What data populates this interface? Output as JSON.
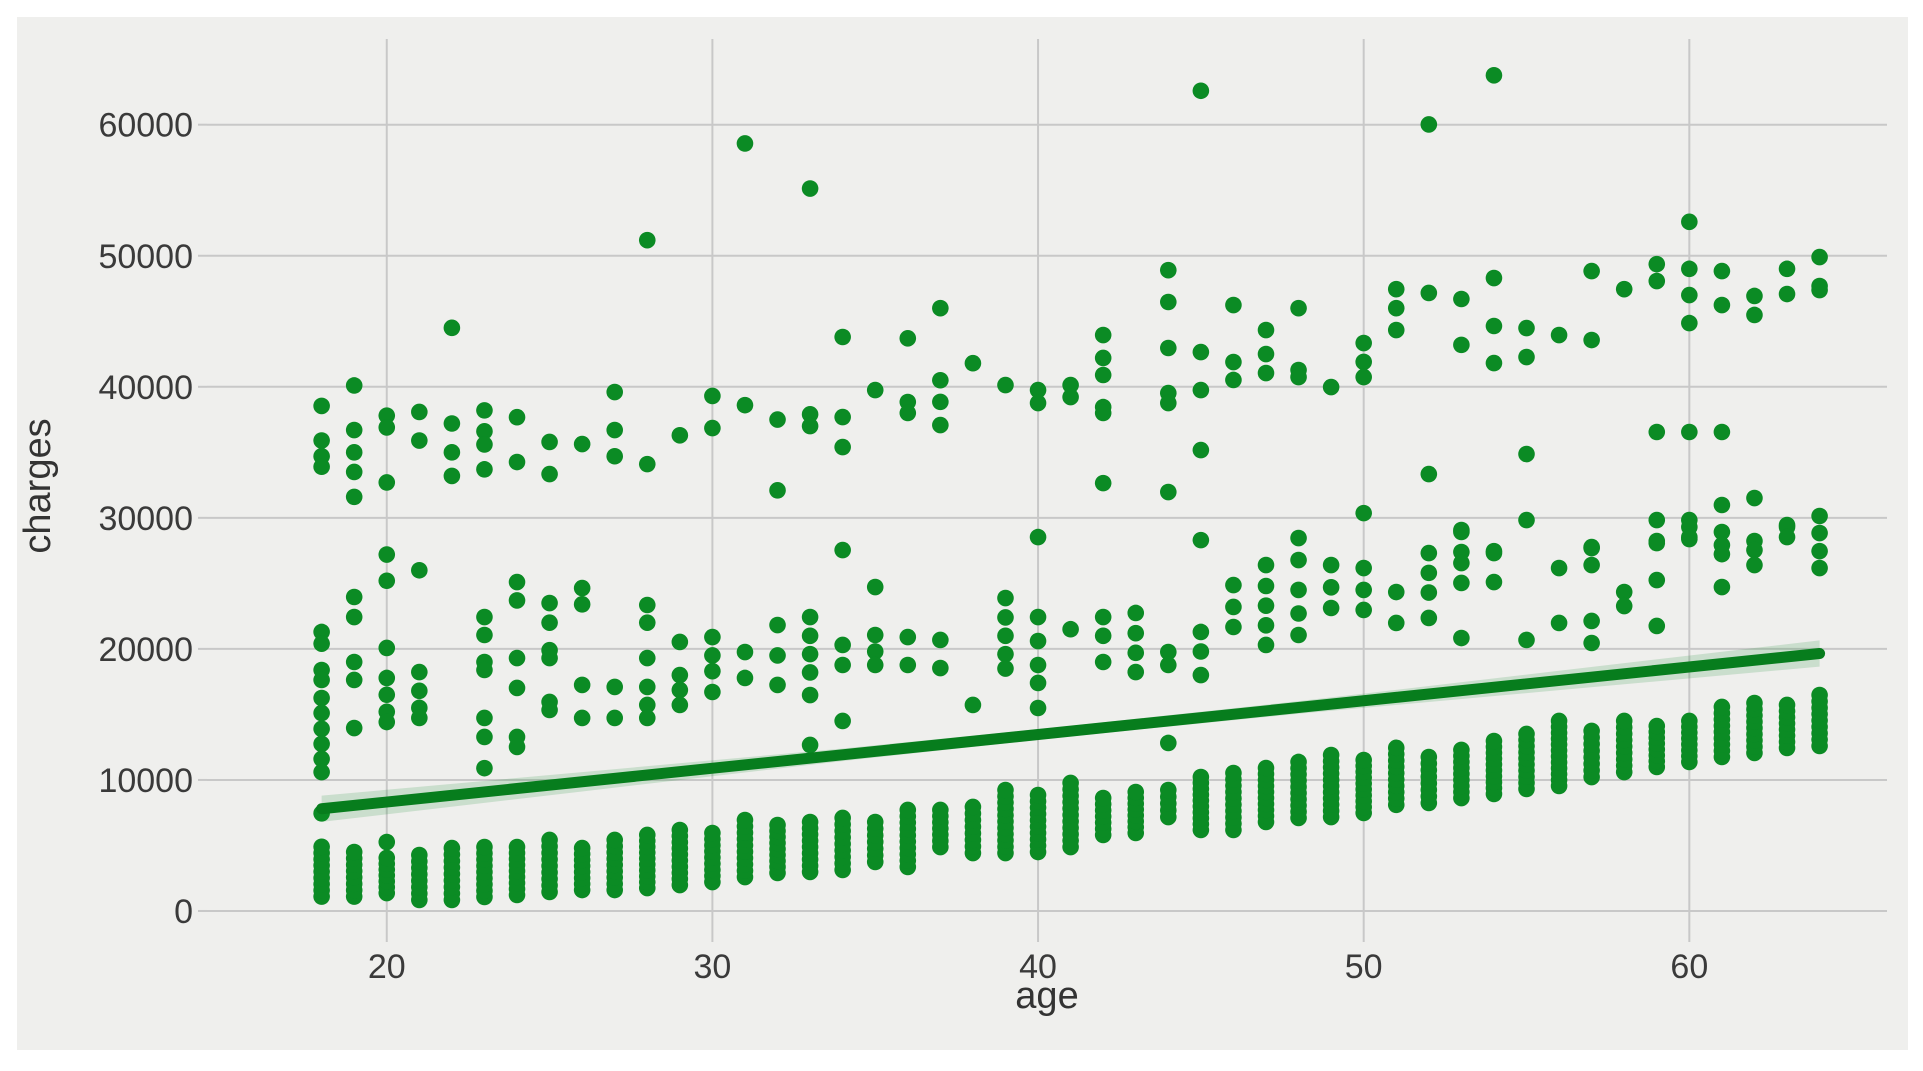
{
  "figure": {
    "background": "#ffffff",
    "panel_background": "#efefed",
    "grid_color": "#c8c8c8",
    "tick_text_color": "#3a3a3a",
    "axis_label_color": "#333333"
  },
  "chart_data": {
    "type": "scatter",
    "title": "",
    "xlabel": "age",
    "ylabel": "charges",
    "x_ticks": [
      20,
      30,
      40,
      50,
      60
    ],
    "y_ticks": [
      0,
      10000,
      20000,
      30000,
      40000,
      50000,
      60000
    ],
    "xlim": [
      14.48,
      66.07
    ],
    "ylim": [
      -1680,
      66540
    ],
    "grid": true,
    "legend": "none",
    "point_color": "#0b8b24",
    "line_color": "#077d1d",
    "ci_color": "rgba(11,139,36,0.16)",
    "regression_line": {
      "x": [
        18,
        64
      ],
      "y": [
        7800,
        19650
      ]
    },
    "ci_band": {
      "x": [
        18,
        26,
        34,
        41,
        48,
        56,
        64
      ],
      "upper": [
        8800,
        10600,
        12400,
        14125,
        16010,
        18330,
        20650
      ],
      "lower": [
        6800,
        9120,
        11440,
        13325,
        15050,
        16850,
        18650
      ]
    },
    "points": [
      [
        18,
        38540
      ],
      [
        18,
        35900
      ],
      [
        18,
        34700
      ],
      [
        18,
        33900
      ],
      [
        18,
        21290
      ],
      [
        18,
        20400
      ],
      [
        18,
        18390
      ],
      [
        18,
        17630
      ],
      [
        18,
        16250
      ],
      [
        18,
        15100
      ],
      [
        18,
        13900
      ],
      [
        18,
        12750
      ],
      [
        18,
        11600
      ],
      [
        18,
        10600
      ],
      [
        18,
        7450
      ],
      [
        19,
        40100
      ],
      [
        19,
        36700
      ],
      [
        19,
        35000
      ],
      [
        19,
        33500
      ],
      [
        19,
        31600
      ],
      [
        19,
        23960
      ],
      [
        19,
        22430
      ],
      [
        19,
        19000
      ],
      [
        19,
        17630
      ],
      [
        19,
        13960
      ],
      [
        20,
        37800
      ],
      [
        20,
        36900
      ],
      [
        20,
        32700
      ],
      [
        20,
        27200
      ],
      [
        20,
        25200
      ],
      [
        20,
        20070
      ],
      [
        20,
        17780
      ],
      [
        20,
        16500
      ],
      [
        20,
        15200
      ],
      [
        20,
        14420
      ],
      [
        20,
        5260
      ],
      [
        21,
        38080
      ],
      [
        21,
        35900
      ],
      [
        21,
        26000
      ],
      [
        21,
        18230
      ],
      [
        21,
        16800
      ],
      [
        21,
        15500
      ],
      [
        21,
        14730
      ],
      [
        22,
        44500
      ],
      [
        22,
        37200
      ],
      [
        22,
        35000
      ],
      [
        22,
        33200
      ],
      [
        23,
        38200
      ],
      [
        23,
        36600
      ],
      [
        23,
        35600
      ],
      [
        23,
        33700
      ],
      [
        23,
        22430
      ],
      [
        23,
        21060
      ],
      [
        23,
        19000
      ],
      [
        23,
        18390
      ],
      [
        23,
        14730
      ],
      [
        23,
        13280
      ],
      [
        23,
        10900
      ],
      [
        24,
        37680
      ],
      [
        24,
        34260
      ],
      [
        24,
        25100
      ],
      [
        24,
        23700
      ],
      [
        24,
        19300
      ],
      [
        24,
        17020
      ],
      [
        24,
        13280
      ],
      [
        24,
        12520
      ],
      [
        25,
        35790
      ],
      [
        25,
        33340
      ],
      [
        25,
        23500
      ],
      [
        25,
        22000
      ],
      [
        25,
        19900
      ],
      [
        25,
        19300
      ],
      [
        25,
        15950
      ],
      [
        25,
        15340
      ],
      [
        26,
        35630
      ],
      [
        26,
        24640
      ],
      [
        26,
        23400
      ],
      [
        26,
        17250
      ],
      [
        26,
        14730
      ],
      [
        27,
        39600
      ],
      [
        27,
        36700
      ],
      [
        27,
        34700
      ],
      [
        27,
        17100
      ],
      [
        27,
        14730
      ],
      [
        28,
        51190
      ],
      [
        28,
        34100
      ],
      [
        28,
        23350
      ],
      [
        28,
        22000
      ],
      [
        28,
        19300
      ],
      [
        28,
        17100
      ],
      [
        28,
        15720
      ],
      [
        28,
        14730
      ],
      [
        29,
        36300
      ],
      [
        29,
        20530
      ],
      [
        29,
        18000
      ],
      [
        29,
        16860
      ],
      [
        29,
        15720
      ],
      [
        30,
        39300
      ],
      [
        30,
        36850
      ],
      [
        30,
        20900
      ],
      [
        30,
        19500
      ],
      [
        30,
        18300
      ],
      [
        30,
        16710
      ],
      [
        31,
        58570
      ],
      [
        31,
        38600
      ],
      [
        31,
        19760
      ],
      [
        31,
        17780
      ],
      [
        32,
        37500
      ],
      [
        32,
        32100
      ],
      [
        32,
        21820
      ],
      [
        32,
        19500
      ],
      [
        32,
        17250
      ],
      [
        33,
        55130
      ],
      [
        33,
        37900
      ],
      [
        33,
        37000
      ],
      [
        33,
        22430
      ],
      [
        33,
        21000
      ],
      [
        33,
        19600
      ],
      [
        33,
        18200
      ],
      [
        33,
        16480
      ],
      [
        33,
        12670
      ],
      [
        34,
        43800
      ],
      [
        34,
        37690
      ],
      [
        34,
        35400
      ],
      [
        34,
        27540
      ],
      [
        34,
        20300
      ],
      [
        34,
        18770
      ],
      [
        34,
        14500
      ],
      [
        35,
        39750
      ],
      [
        35,
        24720
      ],
      [
        35,
        21060
      ],
      [
        35,
        19800
      ],
      [
        35,
        18770
      ],
      [
        36,
        43700
      ],
      [
        36,
        38840
      ],
      [
        36,
        38000
      ],
      [
        36,
        20900
      ],
      [
        36,
        18770
      ],
      [
        37,
        46000
      ],
      [
        37,
        40500
      ],
      [
        37,
        38850
      ],
      [
        37,
        37080
      ],
      [
        37,
        20680
      ],
      [
        37,
        18540
      ],
      [
        38,
        41800
      ],
      [
        38,
        15720
      ],
      [
        39,
        40130
      ],
      [
        39,
        23880
      ],
      [
        39,
        22400
      ],
      [
        39,
        21000
      ],
      [
        39,
        19600
      ],
      [
        39,
        18500
      ],
      [
        40,
        39750
      ],
      [
        40,
        38760
      ],
      [
        40,
        28530
      ],
      [
        40,
        22430
      ],
      [
        40,
        20600
      ],
      [
        40,
        18770
      ],
      [
        40,
        17400
      ],
      [
        40,
        15490
      ],
      [
        41,
        40130
      ],
      [
        41,
        39220
      ],
      [
        41,
        21500
      ],
      [
        42,
        43950
      ],
      [
        42,
        42200
      ],
      [
        42,
        40900
      ],
      [
        42,
        38450
      ],
      [
        42,
        38000
      ],
      [
        42,
        32650
      ],
      [
        42,
        22430
      ],
      [
        42,
        21000
      ],
      [
        42,
        19000
      ],
      [
        43,
        22740
      ],
      [
        43,
        21200
      ],
      [
        43,
        19700
      ],
      [
        43,
        18230
      ],
      [
        44,
        48900
      ],
      [
        44,
        46470
      ],
      [
        44,
        42960
      ],
      [
        44,
        39520
      ],
      [
        44,
        38760
      ],
      [
        44,
        31970
      ],
      [
        44,
        19760
      ],
      [
        44,
        18770
      ],
      [
        44,
        12820
      ],
      [
        45,
        62590
      ],
      [
        45,
        42650
      ],
      [
        45,
        39750
      ],
      [
        45,
        35170
      ],
      [
        45,
        28300
      ],
      [
        45,
        21290
      ],
      [
        45,
        19800
      ],
      [
        45,
        18000
      ],
      [
        46,
        46240
      ],
      [
        46,
        41890
      ],
      [
        46,
        40520
      ],
      [
        46,
        24870
      ],
      [
        46,
        23200
      ],
      [
        46,
        21670
      ],
      [
        47,
        44330
      ],
      [
        47,
        42500
      ],
      [
        47,
        41050
      ],
      [
        47,
        26400
      ],
      [
        47,
        24800
      ],
      [
        47,
        23300
      ],
      [
        47,
        21800
      ],
      [
        47,
        20300
      ],
      [
        48,
        46000
      ],
      [
        48,
        41280
      ],
      [
        48,
        40740
      ],
      [
        48,
        28460
      ],
      [
        48,
        26780
      ],
      [
        48,
        24500
      ],
      [
        48,
        22700
      ],
      [
        48,
        21060
      ],
      [
        49,
        39980
      ],
      [
        49,
        26400
      ],
      [
        49,
        24700
      ],
      [
        49,
        23120
      ],
      [
        50,
        43340
      ],
      [
        50,
        41900
      ],
      [
        50,
        40740
      ],
      [
        50,
        30360
      ],
      [
        50,
        26170
      ],
      [
        50,
        24500
      ],
      [
        50,
        22970
      ],
      [
        51,
        47450
      ],
      [
        51,
        46000
      ],
      [
        51,
        44330
      ],
      [
        51,
        24340
      ],
      [
        51,
        21980
      ],
      [
        52,
        60020
      ],
      [
        52,
        47160
      ],
      [
        52,
        33340
      ],
      [
        52,
        27310
      ],
      [
        52,
        25800
      ],
      [
        52,
        24300
      ],
      [
        52,
        22360
      ],
      [
        53,
        46700
      ],
      [
        53,
        43200
      ],
      [
        53,
        29070
      ],
      [
        53,
        28920
      ],
      [
        53,
        27390
      ],
      [
        53,
        26550
      ],
      [
        53,
        25030
      ],
      [
        53,
        20830
      ],
      [
        54,
        63770
      ],
      [
        54,
        48300
      ],
      [
        54,
        44640
      ],
      [
        54,
        41810
      ],
      [
        54,
        27460
      ],
      [
        54,
        27310
      ],
      [
        54,
        25100
      ],
      [
        55,
        44480
      ],
      [
        55,
        42270
      ],
      [
        55,
        34870
      ],
      [
        55,
        29830
      ],
      [
        55,
        20680
      ],
      [
        56,
        43950
      ],
      [
        56,
        26170
      ],
      [
        56,
        21980
      ],
      [
        57,
        48830
      ],
      [
        57,
        43570
      ],
      [
        57,
        27770
      ],
      [
        57,
        27690
      ],
      [
        57,
        26400
      ],
      [
        57,
        22130
      ],
      [
        57,
        20450
      ],
      [
        58,
        47450
      ],
      [
        58,
        24340
      ],
      [
        58,
        23270
      ],
      [
        59,
        49360
      ],
      [
        59,
        48070
      ],
      [
        59,
        36550
      ],
      [
        59,
        29830
      ],
      [
        59,
        28230
      ],
      [
        59,
        28070
      ],
      [
        59,
        25250
      ],
      [
        59,
        21750
      ],
      [
        60,
        52590
      ],
      [
        60,
        49000
      ],
      [
        60,
        47000
      ],
      [
        60,
        44860
      ],
      [
        60,
        36550
      ],
      [
        60,
        29830
      ],
      [
        60,
        29300
      ],
      [
        60,
        28530
      ],
      [
        60,
        28380
      ],
      [
        61,
        48830
      ],
      [
        61,
        46240
      ],
      [
        61,
        36550
      ],
      [
        61,
        30980
      ],
      [
        61,
        28920
      ],
      [
        61,
        27920
      ],
      [
        61,
        27230
      ],
      [
        61,
        24720
      ],
      [
        62,
        46930
      ],
      [
        62,
        45480
      ],
      [
        62,
        31510
      ],
      [
        62,
        28230
      ],
      [
        62,
        27540
      ],
      [
        62,
        26400
      ],
      [
        63,
        49000
      ],
      [
        63,
        47080
      ],
      [
        63,
        29450
      ],
      [
        63,
        29300
      ],
      [
        63,
        28530
      ],
      [
        64,
        49900
      ],
      [
        64,
        47690
      ],
      [
        64,
        47380
      ],
      [
        64,
        30140
      ],
      [
        64,
        28840
      ],
      [
        64,
        27460
      ],
      [
        64,
        26170
      ]
    ],
    "bottom_pills": [
      {
        "age": 18,
        "min": 1100,
        "max": 4900
      },
      {
        "age": 19,
        "min": 1100,
        "max": 4500
      },
      {
        "age": 20,
        "min": 1370,
        "max": 4050
      },
      {
        "age": 21,
        "min": 840,
        "max": 4270
      },
      {
        "age": 22,
        "min": 840,
        "max": 4800
      },
      {
        "age": 23,
        "min": 1070,
        "max": 4880
      },
      {
        "age": 24,
        "min": 1220,
        "max": 4880
      },
      {
        "age": 25,
        "min": 1450,
        "max": 5420
      },
      {
        "age": 26,
        "min": 1600,
        "max": 4800
      },
      {
        "age": 27,
        "min": 1600,
        "max": 5420
      },
      {
        "age": 28,
        "min": 1750,
        "max": 5800
      },
      {
        "age": 29,
        "min": 1980,
        "max": 6180
      },
      {
        "age": 30,
        "min": 2210,
        "max": 5950
      },
      {
        "age": 31,
        "min": 2590,
        "max": 6940
      },
      {
        "age": 32,
        "min": 2900,
        "max": 6560
      },
      {
        "age": 33,
        "min": 2980,
        "max": 6790
      },
      {
        "age": 34,
        "min": 3130,
        "max": 7100
      },
      {
        "age": 35,
        "min": 3740,
        "max": 6790
      },
      {
        "age": 36,
        "min": 3360,
        "max": 7710
      },
      {
        "age": 37,
        "min": 4880,
        "max": 7710
      },
      {
        "age": 38,
        "min": 4420,
        "max": 7940
      },
      {
        "age": 39,
        "min": 4420,
        "max": 9230
      },
      {
        "age": 40,
        "min": 4500,
        "max": 8850
      },
      {
        "age": 41,
        "min": 4880,
        "max": 9770
      },
      {
        "age": 42,
        "min": 5800,
        "max": 8620
      },
      {
        "age": 43,
        "min": 5950,
        "max": 9080
      },
      {
        "age": 44,
        "min": 7170,
        "max": 9230
      },
      {
        "age": 45,
        "min": 6180,
        "max": 10220
      },
      {
        "age": 46,
        "min": 6180,
        "max": 10530
      },
      {
        "age": 47,
        "min": 6790,
        "max": 10910
      },
      {
        "age": 48,
        "min": 7100,
        "max": 11370
      },
      {
        "age": 49,
        "min": 7170,
        "max": 11900
      },
      {
        "age": 50,
        "min": 7480,
        "max": 11520
      },
      {
        "age": 51,
        "min": 8100,
        "max": 12450
      },
      {
        "age": 52,
        "min": 8240,
        "max": 11750
      },
      {
        "age": 53,
        "min": 8620,
        "max": 12290
      },
      {
        "age": 54,
        "min": 8930,
        "max": 12970
      },
      {
        "age": 55,
        "min": 9310,
        "max": 13510
      },
      {
        "age": 56,
        "min": 9540,
        "max": 14500
      },
      {
        "age": 57,
        "min": 10220,
        "max": 13740
      },
      {
        "age": 58,
        "min": 10600,
        "max": 14500
      },
      {
        "age": 59,
        "min": 10990,
        "max": 14110
      },
      {
        "age": 60,
        "min": 11370,
        "max": 14500
      },
      {
        "age": 61,
        "min": 11750,
        "max": 15570
      },
      {
        "age": 62,
        "min": 12060,
        "max": 15870
      },
      {
        "age": 63,
        "min": 12440,
        "max": 15720
      },
      {
        "age": 64,
        "min": 12590,
        "max": 16480
      }
    ]
  }
}
